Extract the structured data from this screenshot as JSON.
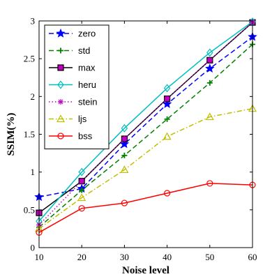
{
  "chart_data": {
    "type": "line",
    "title": "",
    "xlabel": "Noise level",
    "ylabel": "SSIM(%)",
    "xlim": [
      10,
      60
    ],
    "ylim": [
      0,
      3
    ],
    "xticks": [
      10,
      20,
      30,
      40,
      50,
      60
    ],
    "yticks": [
      0,
      0.5,
      1,
      1.5,
      2,
      2.5,
      3
    ],
    "ytick_labels": [
      "0",
      "0.5",
      "1",
      "1.5",
      "2",
      "2.5",
      "3"
    ],
    "grid": false,
    "legend_position": "top-left",
    "x": [
      10,
      20,
      30,
      40,
      50,
      60
    ],
    "series": [
      {
        "name": "zero",
        "values": [
          0.67,
          0.78,
          1.37,
          1.9,
          2.37,
          2.79
        ],
        "color": "#0000ff",
        "dash": "dashed",
        "marker": "star"
      },
      {
        "name": "std",
        "values": [
          0.27,
          0.76,
          1.22,
          1.7,
          2.18,
          2.69
        ],
        "color": "#007f00",
        "dash": "dashed",
        "marker": "plus"
      },
      {
        "name": "max",
        "values": [
          0.46,
          0.88,
          1.44,
          1.97,
          2.48,
          2.98
        ],
        "color": "#000000",
        "dash": "solid",
        "marker": "square"
      },
      {
        "name": "heru",
        "values": [
          0.35,
          1.0,
          1.58,
          2.11,
          2.58,
          2.99
        ],
        "color": "#00bfbf",
        "dash": "solid",
        "marker": "diamond"
      },
      {
        "name": "stein",
        "values": [
          0.3,
          0.88,
          1.44,
          1.97,
          2.48,
          2.98
        ],
        "color": "#bf00bf",
        "dash": "dotted",
        "marker": "asterisk"
      },
      {
        "name": "ljs",
        "values": [
          0.25,
          0.66,
          1.03,
          1.47,
          1.73,
          1.84
        ],
        "color": "#bfbf00",
        "dash": "dashdot",
        "marker": "triangle"
      },
      {
        "name": "bss",
        "values": [
          0.2,
          0.52,
          0.59,
          0.72,
          0.85,
          0.83
        ],
        "color": "#ff0000",
        "dash": "solid",
        "marker": "circle"
      }
    ]
  }
}
